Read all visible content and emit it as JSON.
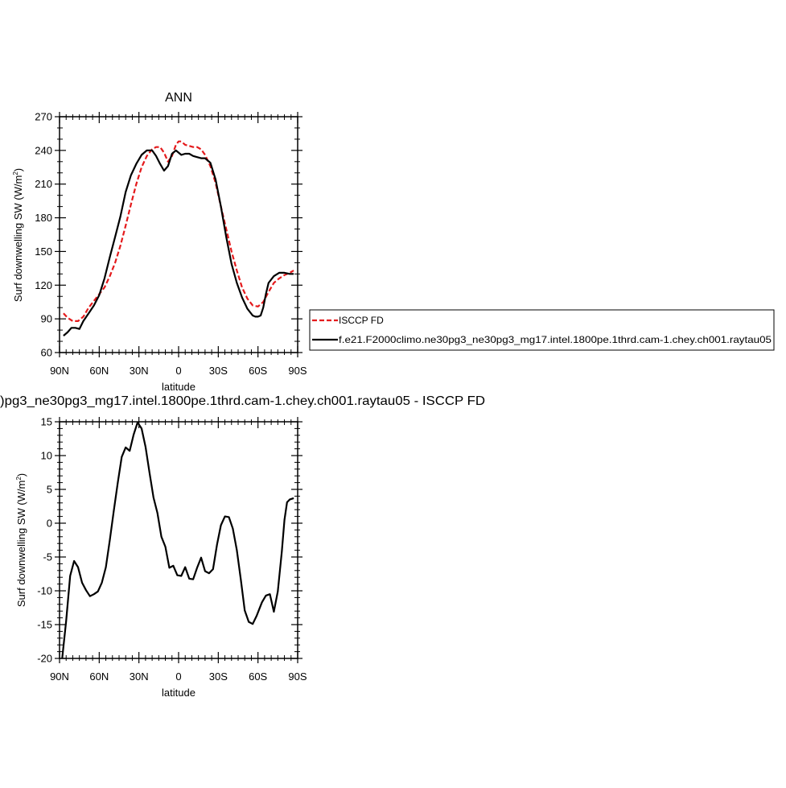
{
  "chart_data": [
    {
      "type": "line",
      "title": "ANN",
      "xlabel": "latitude",
      "ylabel": "Surf downwelling SW (W/m",
      "ylabel_sup": "2",
      "ylabel_end": ")",
      "xlim": [
        -90,
        90
      ],
      "ylim": [
        60,
        270
      ],
      "x_ticks": [
        {
          "value": -90,
          "label": "90N"
        },
        {
          "value": -60,
          "label": "60N"
        },
        {
          "value": -30,
          "label": "30N"
        },
        {
          "value": 0,
          "label": "0"
        },
        {
          "value": 30,
          "label": "30S"
        },
        {
          "value": 60,
          "label": "60S"
        },
        {
          "value": 90,
          "label": "90S"
        }
      ],
      "y_ticks": [
        60,
        90,
        120,
        150,
        180,
        210,
        240,
        270
      ],
      "legend_position": "right",
      "series": [
        {
          "name": "ISCCP FD",
          "color": "#e41a1c",
          "dash": "dashed",
          "x": [
            -87,
            -84,
            -80,
            -76,
            -72,
            -68,
            -64,
            -60,
            -56,
            -52,
            -48,
            -44,
            -40,
            -36,
            -32,
            -28,
            -24,
            -20,
            -17,
            -14,
            -11,
            -8,
            -5,
            -2,
            0,
            2,
            5,
            8,
            11,
            14,
            17,
            20,
            24,
            28,
            32,
            36,
            40,
            44,
            48,
            52,
            56,
            60,
            64,
            68,
            72,
            76,
            80,
            84,
            87
          ],
          "values": [
            95,
            91,
            88,
            88,
            92,
            100,
            106,
            112,
            118,
            128,
            140,
            155,
            173,
            192,
            210,
            225,
            235,
            241,
            243,
            243,
            238,
            230,
            235,
            245,
            248,
            248,
            245,
            244,
            243,
            243,
            241,
            236,
            226,
            211,
            190,
            170,
            150,
            133,
            118,
            108,
            102,
            101,
            105,
            114,
            122,
            126,
            129,
            131,
            133
          ]
        },
        {
          "name": "f.e21.F2000climo.ne30pg3_ne30pg3_mg17.intel.1800pe.1thrd.cam-1.chey.ch001.raytau05",
          "color": "#000000",
          "dash": "solid",
          "x": [
            -87,
            -84,
            -81,
            -78,
            -75,
            -72,
            -68,
            -64,
            -60,
            -56,
            -52,
            -48,
            -44,
            -40,
            -36,
            -32,
            -28,
            -24,
            -20,
            -17,
            -14,
            -11,
            -8,
            -5,
            -2,
            0,
            2,
            5,
            8,
            11,
            14,
            17,
            20,
            24,
            28,
            32,
            36,
            40,
            44,
            48,
            52,
            56,
            58,
            60,
            62,
            64,
            66,
            68,
            72,
            76,
            80,
            84,
            87
          ],
          "values": [
            75,
            78,
            82,
            82,
            81,
            88,
            95,
            102,
            111,
            126,
            145,
            163,
            181,
            203,
            218,
            228,
            236,
            240,
            240,
            235,
            228,
            222,
            226,
            237,
            240,
            238,
            236,
            237,
            237,
            235,
            234,
            233,
            233,
            229,
            214,
            190,
            163,
            139,
            122,
            109,
            99,
            93,
            92,
            92,
            93,
            100,
            112,
            122,
            128,
            131,
            131,
            130,
            130
          ]
        }
      ]
    },
    {
      "type": "line",
      "title": ")pg3_ne30pg3_mg17.intel.1800pe.1thrd.cam-1.chey.ch001.raytau05 - ISCCP FD",
      "xlabel": "latitude",
      "ylabel": "Surf downwelling SW (W/m",
      "ylabel_sup": "2",
      "ylabel_end": ")",
      "xlim": [
        -90,
        90
      ],
      "ylim": [
        -20,
        15
      ],
      "x_ticks": [
        {
          "value": -90,
          "label": "90N"
        },
        {
          "value": -60,
          "label": "60N"
        },
        {
          "value": -30,
          "label": "30N"
        },
        {
          "value": 0,
          "label": "0"
        },
        {
          "value": 30,
          "label": "30S"
        },
        {
          "value": 60,
          "label": "60S"
        },
        {
          "value": 90,
          "label": "90S"
        }
      ],
      "y_ticks": [
        -20,
        -15,
        -10,
        -5,
        0,
        5,
        10,
        15
      ],
      "series": [
        {
          "color": "#000000",
          "dash": "solid",
          "x": [
            -88,
            -85,
            -82,
            -79,
            -76,
            -73,
            -70,
            -67,
            -64,
            -61,
            -58,
            -55,
            -52,
            -49,
            -46,
            -43,
            -40,
            -37,
            -34,
            -31,
            -28,
            -25,
            -22,
            -19,
            -16,
            -13,
            -10,
            -7,
            -4,
            -1,
            2,
            5,
            8,
            11,
            14,
            17,
            20,
            23,
            26,
            29,
            32,
            35,
            38,
            41,
            44,
            47,
            50,
            53,
            56,
            59,
            61,
            63,
            66,
            69,
            72,
            75,
            78,
            80,
            82,
            84,
            87
          ],
          "values": [
            -20,
            -14.5,
            -7.8,
            -5.6,
            -6.5,
            -8.8,
            -9.9,
            -10.8,
            -10.5,
            -10.1,
            -8.8,
            -6.5,
            -2.5,
            1.8,
            6,
            9.8,
            11.2,
            10.7,
            13.1,
            14.9,
            14,
            11.3,
            7.5,
            3.8,
            1.5,
            -2,
            -3.5,
            -6.6,
            -6.3,
            -7.7,
            -7.8,
            -6.5,
            -8.2,
            -8.3,
            -6.6,
            -5.1,
            -7.1,
            -7.4,
            -6.8,
            -3.2,
            -0.3,
            1,
            0.9,
            -0.8,
            -4,
            -8.3,
            -12.9,
            -14.6,
            -14.9,
            -13.7,
            -12.7,
            -11.7,
            -10.7,
            -10.5,
            -13.1,
            -10.1,
            -4.2,
            0.5,
            3.1,
            3.5,
            3.7
          ]
        }
      ]
    }
  ]
}
